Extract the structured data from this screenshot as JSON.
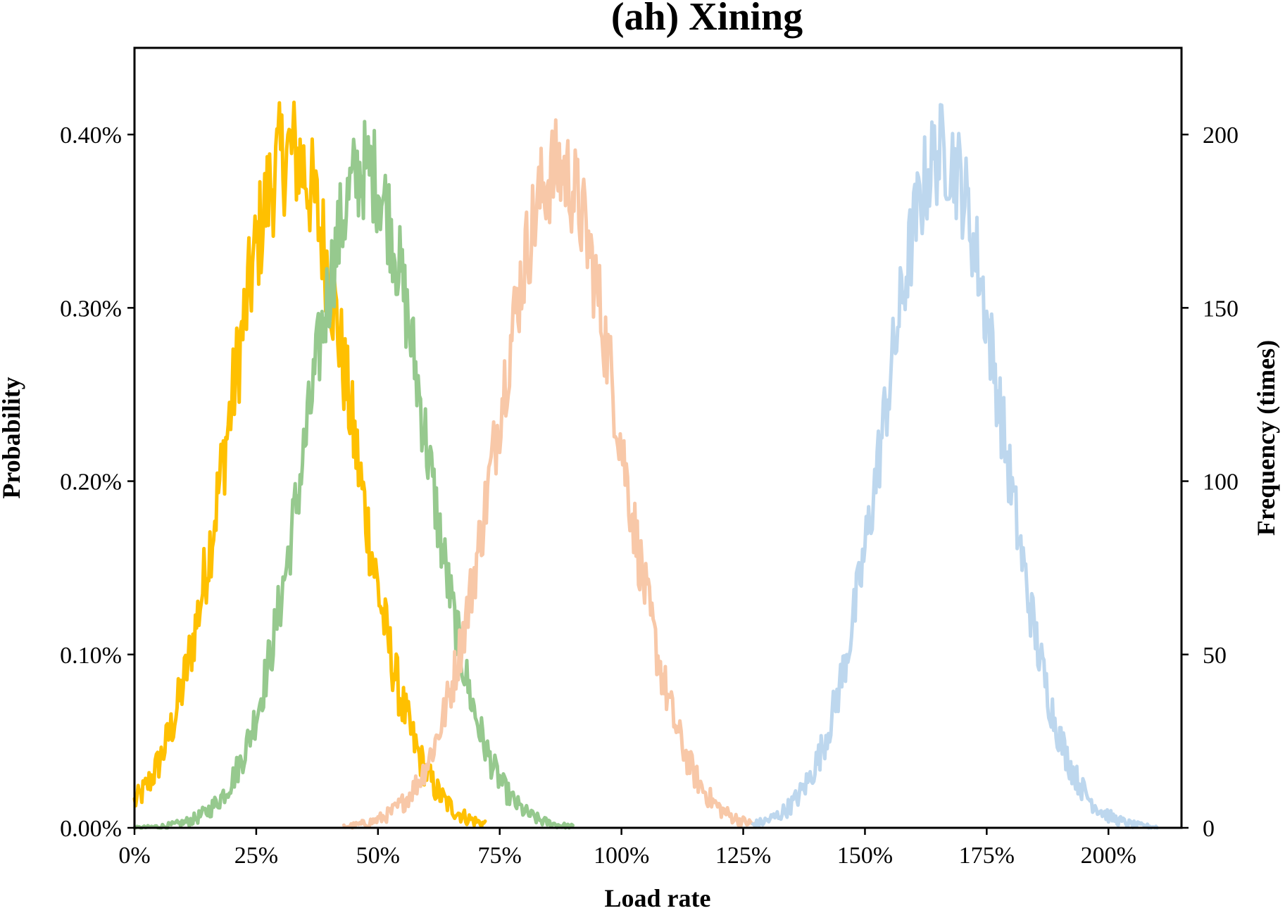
{
  "chart_data": {
    "type": "line",
    "title": "(ah) Xining",
    "xlabel": "Load rate",
    "ylabel": "Probability",
    "y2label": "Frequency (times)",
    "xlim": [
      0,
      2.15
    ],
    "ylim": [
      0,
      0.0045
    ],
    "y2lim": [
      0,
      225
    ],
    "xticks": [
      0,
      0.25,
      0.5,
      0.75,
      1.0,
      1.25,
      1.5,
      1.75,
      2.0
    ],
    "xtick_labels": [
      "0%",
      "25%",
      "50%",
      "75%",
      "100%",
      "125%",
      "150%",
      "175%",
      "200%"
    ],
    "yticks": [
      0,
      0.001,
      0.002,
      0.003,
      0.004
    ],
    "ytick_labels": [
      "0.00%",
      "0.10%",
      "0.20%",
      "0.30%",
      "0.40%"
    ],
    "y2ticks": [
      0,
      50,
      100,
      150,
      200
    ],
    "y2tick_labels": [
      "0",
      "50",
      "100",
      "150",
      "200"
    ],
    "grid": false,
    "series": [
      {
        "color": "#FFC000",
        "mean": 0.32,
        "std": 0.125,
        "peak": 0.0039,
        "noise": 0.00035,
        "x": [
          0.0,
          0.05,
          0.1,
          0.15,
          0.2,
          0.25,
          0.3,
          0.35,
          0.4,
          0.45,
          0.5,
          0.55,
          0.6,
          0.65,
          0.7,
          0.72
        ],
        "y": [
          0.0,
          0.0002,
          0.0006,
          0.0012,
          0.0019,
          0.003,
          0.0039,
          0.0037,
          0.003,
          0.002,
          0.0011,
          0.0005,
          0.0002,
          5e-05,
          0.0,
          0.0
        ]
      },
      {
        "color": "#96C98E",
        "mean": 0.475,
        "std": 0.12,
        "peak": 0.0038,
        "noise": 0.0003,
        "x": [
          0.0,
          0.1,
          0.15,
          0.2,
          0.25,
          0.3,
          0.35,
          0.4,
          0.45,
          0.5,
          0.55,
          0.6,
          0.65,
          0.7,
          0.75,
          0.8,
          0.9
        ],
        "y": [
          0.0,
          0.0001,
          0.0002,
          0.0005,
          0.0009,
          0.0015,
          0.0024,
          0.0032,
          0.0038,
          0.0036,
          0.0029,
          0.0019,
          0.001,
          0.0004,
          0.0001,
          0.0,
          0.0
        ]
      },
      {
        "color": "#F8C8A8",
        "mean": 0.87,
        "std": 0.125,
        "peak": 0.0038,
        "noise": 0.0003,
        "x": [
          0.43,
          0.55,
          0.6,
          0.65,
          0.7,
          0.75,
          0.8,
          0.85,
          0.9,
          0.95,
          1.0,
          1.05,
          1.1,
          1.15,
          1.2,
          1.28
        ],
        "y": [
          0.0,
          0.0001,
          0.0003,
          0.0007,
          0.0013,
          0.0021,
          0.003,
          0.0037,
          0.0036,
          0.003,
          0.002,
          0.0011,
          0.0005,
          0.0002,
          0.0,
          0.0
        ]
      },
      {
        "color": "#BDD7EE",
        "mean": 1.66,
        "std": 0.12,
        "peak": 0.0039,
        "noise": 0.0003,
        "x": [
          1.27,
          1.35,
          1.4,
          1.45,
          1.5,
          1.55,
          1.6,
          1.65,
          1.7,
          1.75,
          1.8,
          1.85,
          1.9,
          1.95,
          2.0,
          2.1
        ],
        "y": [
          0.0,
          0.0001,
          0.0003,
          0.0008,
          0.0015,
          0.0025,
          0.0034,
          0.0039,
          0.0037,
          0.0029,
          0.0019,
          0.001,
          0.0004,
          0.0001,
          0.0,
          0.0
        ]
      }
    ]
  }
}
